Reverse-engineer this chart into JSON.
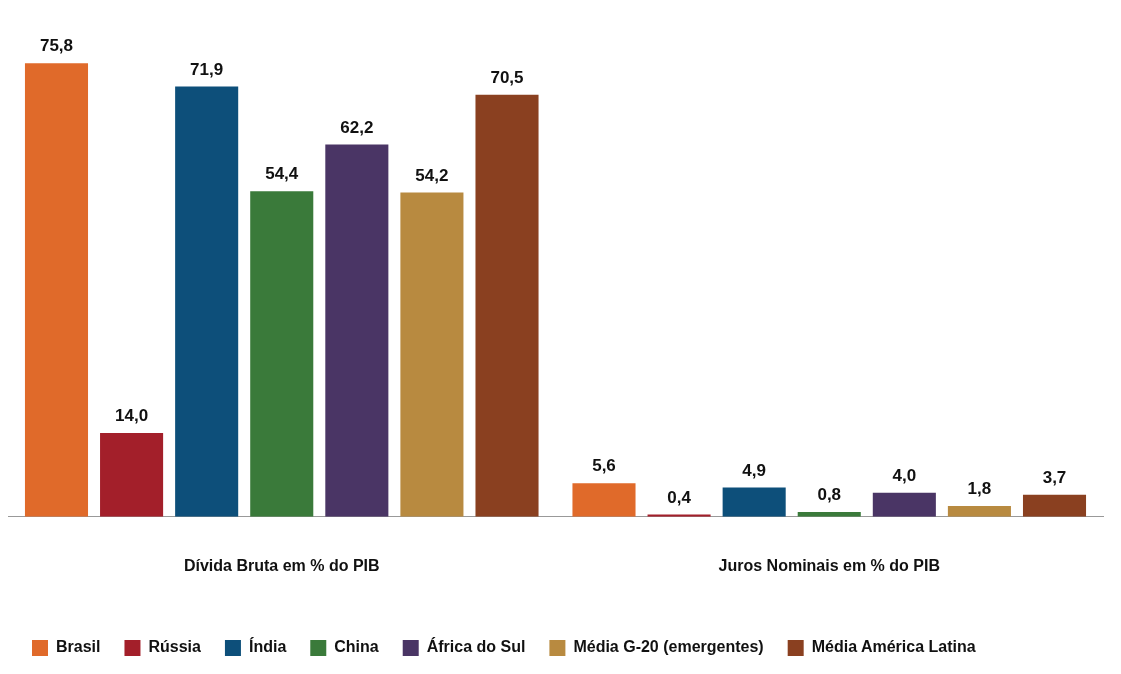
{
  "chart_data": {
    "type": "bar",
    "categories": [
      "Dívida Bruta em % do PIB",
      "Juros Nominais em % do PIB"
    ],
    "series": [
      {
        "name": "Brasil",
        "color": "#e06a2a",
        "values": [
          75.8,
          5.6
        ],
        "value_labels": [
          "75,8",
          "5,6"
        ]
      },
      {
        "name": "Rússia",
        "color": "#a31f2a",
        "values": [
          14.0,
          0.4
        ],
        "value_labels": [
          "14,0",
          "0,4"
        ]
      },
      {
        "name": "Índia",
        "color": "#0d4f7a",
        "values": [
          71.9,
          4.9
        ],
        "value_labels": [
          "71,9",
          "4,9"
        ]
      },
      {
        "name": "China",
        "color": "#3a7a3a",
        "values": [
          54.4,
          0.8
        ],
        "value_labels": [
          "54,4",
          "0,8"
        ]
      },
      {
        "name": "África do Sul",
        "color": "#4a3565",
        "values": [
          62.2,
          4.0
        ],
        "value_labels": [
          "62,2",
          "4,0"
        ]
      },
      {
        "name": "Média G-20 (emergentes)",
        "color": "#b88a40",
        "values": [
          54.2,
          1.8
        ],
        "value_labels": [
          "54,2",
          "1,8"
        ]
      },
      {
        "name": "Média América Latina",
        "color": "#8a4020",
        "values": [
          70.5,
          3.7
        ],
        "value_labels": [
          "70,5",
          "3,7"
        ]
      }
    ],
    "legend": "bottom",
    "grid": false
  }
}
